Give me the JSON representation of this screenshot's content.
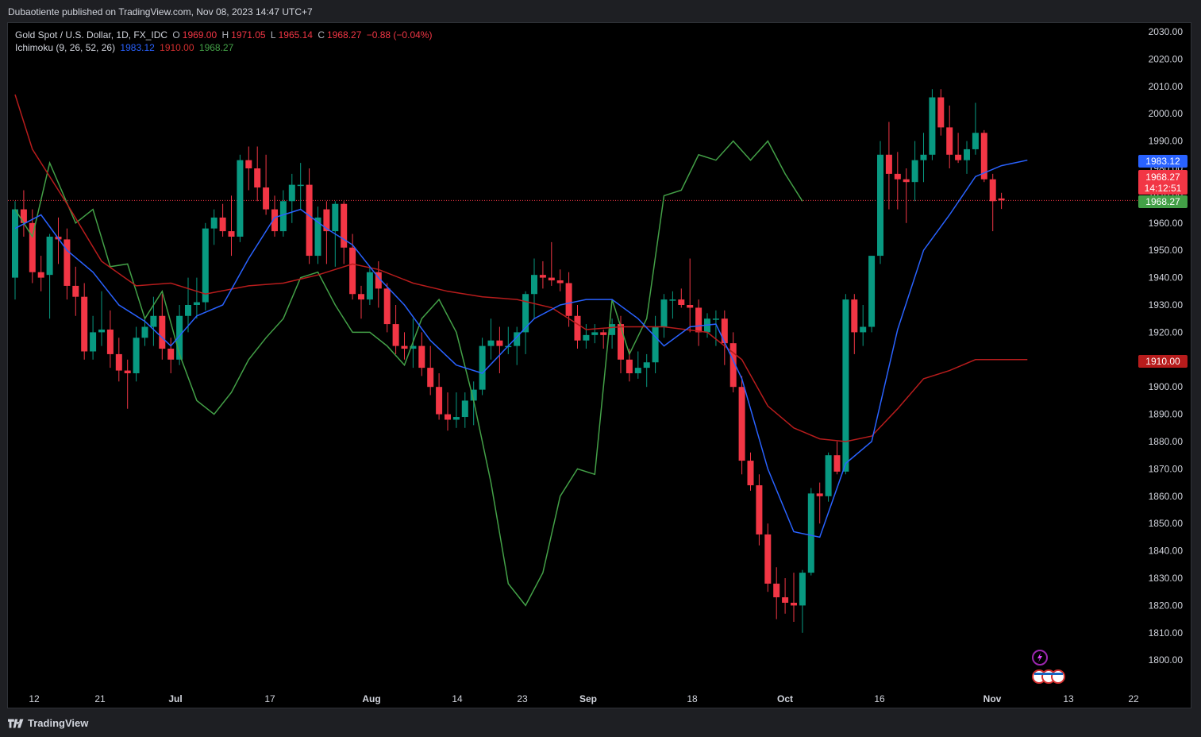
{
  "header": {
    "publisher_line": "Dubaotiente published on TradingView.com, Nov 08, 2023 14:47 UTC+7"
  },
  "legend": {
    "symbol": "Gold Spot / U.S. Dollar, 1D, FX_IDC",
    "o_label": "O",
    "o_value": "1969.00",
    "h_label": "H",
    "h_value": "1971.05",
    "l_label": "L",
    "l_value": "1965.14",
    "c_label": "C",
    "c_value": "1968.27",
    "change": "−0.88 (−0.04%)",
    "indicator": "Ichimoku (9, 26, 52, 26)",
    "tenkan_value": "1983.12",
    "kijun_value": "1910.00",
    "chikou_value": "1968.27"
  },
  "price_axis": {
    "ticks": [
      "2030.00",
      "2020.00",
      "2010.00",
      "2000.00",
      "1990.00",
      "1980.00",
      "1970.00",
      "1960.00",
      "1950.00",
      "1940.00",
      "1930.00",
      "1920.00",
      "1910.00",
      "1900.00",
      "1890.00",
      "1880.00",
      "1870.00",
      "1860.00",
      "1850.00",
      "1840.00",
      "1830.00",
      "1820.00",
      "1810.00",
      "1800.00"
    ],
    "badge_tenkan": "1983.12",
    "badge_last": "1968.27",
    "badge_countdown": "14:12:51",
    "badge_chikou": "1968.27",
    "badge_kijun": "1910.00"
  },
  "time_axis": {
    "labels": [
      "12",
      "21",
      "Jul",
      "17",
      "Aug",
      "14",
      "23",
      "Sep",
      "18",
      "Oct",
      "16",
      "Nov",
      "13",
      "22"
    ]
  },
  "colors": {
    "up": "#089981",
    "down": "#f23645",
    "tenkan": "#2962ff",
    "kijun": "#b71c1c",
    "chikou": "#43a047",
    "background": "#000000"
  },
  "footer": {
    "brand": "TradingView"
  },
  "chart_data": {
    "type": "candlestick",
    "title": "Gold Spot / U.S. Dollar, 1D, FX_IDC",
    "ylim": [
      1795,
      2036
    ],
    "candles": [
      {
        "o": 1940,
        "h": 1968,
        "l": 1932,
        "c": 1965
      },
      {
        "o": 1965,
        "h": 1972,
        "l": 1955,
        "c": 1960
      },
      {
        "o": 1960,
        "h": 1965,
        "l": 1938,
        "c": 1942
      },
      {
        "o": 1942,
        "h": 1948,
        "l": 1935,
        "c": 1940
      },
      {
        "o": 1941,
        "h": 1956,
        "l": 1925,
        "c": 1955
      },
      {
        "o": 1955,
        "h": 1962,
        "l": 1945,
        "c": 1954
      },
      {
        "o": 1954,
        "h": 1958,
        "l": 1932,
        "c": 1937
      },
      {
        "o": 1937,
        "h": 1944,
        "l": 1926,
        "c": 1933
      },
      {
        "o": 1933,
        "h": 1938,
        "l": 1910,
        "c": 1913
      },
      {
        "o": 1913,
        "h": 1926,
        "l": 1910,
        "c": 1920
      },
      {
        "o": 1920,
        "h": 1935,
        "l": 1915,
        "c": 1921
      },
      {
        "o": 1921,
        "h": 1928,
        "l": 1907,
        "c": 1912
      },
      {
        "o": 1912,
        "h": 1918,
        "l": 1902,
        "c": 1906
      },
      {
        "o": 1906,
        "h": 1910,
        "l": 1892,
        "c": 1905
      },
      {
        "o": 1905,
        "h": 1922,
        "l": 1902,
        "c": 1918
      },
      {
        "o": 1918,
        "h": 1925,
        "l": 1915,
        "c": 1922
      },
      {
        "o": 1922,
        "h": 1933,
        "l": 1915,
        "c": 1926
      },
      {
        "o": 1926,
        "h": 1934,
        "l": 1910,
        "c": 1914
      },
      {
        "o": 1914,
        "h": 1918,
        "l": 1905,
        "c": 1910
      },
      {
        "o": 1910,
        "h": 1930,
        "l": 1908,
        "c": 1926
      },
      {
        "o": 1926,
        "h": 1940,
        "l": 1920,
        "c": 1930
      },
      {
        "o": 1930,
        "h": 1940,
        "l": 1925,
        "c": 1931
      },
      {
        "o": 1931,
        "h": 1960,
        "l": 1928,
        "c": 1958
      },
      {
        "o": 1958,
        "h": 1965,
        "l": 1952,
        "c": 1962
      },
      {
        "o": 1962,
        "h": 1967,
        "l": 1955,
        "c": 1957
      },
      {
        "o": 1957,
        "h": 1970,
        "l": 1948,
        "c": 1955
      },
      {
        "o": 1955,
        "h": 1985,
        "l": 1953,
        "c": 1983
      },
      {
        "o": 1983,
        "h": 1988,
        "l": 1972,
        "c": 1980
      },
      {
        "o": 1980,
        "h": 1988,
        "l": 1968,
        "c": 1973
      },
      {
        "o": 1973,
        "h": 1985,
        "l": 1963,
        "c": 1965
      },
      {
        "o": 1965,
        "h": 1970,
        "l": 1955,
        "c": 1957
      },
      {
        "o": 1957,
        "h": 1972,
        "l": 1955,
        "c": 1968
      },
      {
        "o": 1968,
        "h": 1978,
        "l": 1960,
        "c": 1974
      },
      {
        "o": 1974,
        "h": 1982,
        "l": 1965,
        "c": 1974
      },
      {
        "o": 1974,
        "h": 1980,
        "l": 1945,
        "c": 1948
      },
      {
        "o": 1948,
        "h": 1966,
        "l": 1945,
        "c": 1962
      },
      {
        "o": 1965,
        "h": 1968,
        "l": 1945,
        "c": 1957
      },
      {
        "o": 1957,
        "h": 1968,
        "l": 1944,
        "c": 1967
      },
      {
        "o": 1967,
        "h": 1968,
        "l": 1945,
        "c": 1951
      },
      {
        "o": 1951,
        "h": 1956,
        "l": 1932,
        "c": 1934
      },
      {
        "o": 1934,
        "h": 1937,
        "l": 1925,
        "c": 1932
      },
      {
        "o": 1932,
        "h": 1944,
        "l": 1930,
        "c": 1942
      },
      {
        "o": 1942,
        "h": 1946,
        "l": 1929,
        "c": 1936
      },
      {
        "o": 1936,
        "h": 1938,
        "l": 1920,
        "c": 1923
      },
      {
        "o": 1923,
        "h": 1930,
        "l": 1912,
        "c": 1915
      },
      {
        "o": 1915,
        "h": 1920,
        "l": 1910,
        "c": 1914
      },
      {
        "o": 1914,
        "h": 1925,
        "l": 1907,
        "c": 1915
      },
      {
        "o": 1915,
        "h": 1920,
        "l": 1904,
        "c": 1907
      },
      {
        "o": 1907,
        "h": 1915,
        "l": 1897,
        "c": 1900
      },
      {
        "o": 1900,
        "h": 1905,
        "l": 1888,
        "c": 1890
      },
      {
        "o": 1890,
        "h": 1898,
        "l": 1884,
        "c": 1888
      },
      {
        "o": 1888,
        "h": 1898,
        "l": 1885,
        "c": 1889
      },
      {
        "o": 1889,
        "h": 1898,
        "l": 1885,
        "c": 1895
      },
      {
        "o": 1895,
        "h": 1902,
        "l": 1886,
        "c": 1899
      },
      {
        "o": 1899,
        "h": 1918,
        "l": 1897,
        "c": 1915
      },
      {
        "o": 1915,
        "h": 1925,
        "l": 1910,
        "c": 1917
      },
      {
        "o": 1917,
        "h": 1922,
        "l": 1905,
        "c": 1915
      },
      {
        "o": 1915,
        "h": 1922,
        "l": 1912,
        "c": 1915
      },
      {
        "o": 1915,
        "h": 1922,
        "l": 1908,
        "c": 1920
      },
      {
        "o": 1920,
        "h": 1935,
        "l": 1912,
        "c": 1934
      },
      {
        "o": 1934,
        "h": 1947,
        "l": 1925,
        "c": 1941
      },
      {
        "o": 1941,
        "h": 1946,
        "l": 1936,
        "c": 1940
      },
      {
        "o": 1940,
        "h": 1953,
        "l": 1937,
        "c": 1939
      },
      {
        "o": 1939,
        "h": 1943,
        "l": 1935,
        "c": 1938
      },
      {
        "o": 1938,
        "h": 1942,
        "l": 1922,
        "c": 1926
      },
      {
        "o": 1926,
        "h": 1930,
        "l": 1914,
        "c": 1917
      },
      {
        "o": 1917,
        "h": 1923,
        "l": 1914,
        "c": 1919
      },
      {
        "o": 1919,
        "h": 1923,
        "l": 1916,
        "c": 1920
      },
      {
        "o": 1920,
        "h": 1921,
        "l": 1914,
        "c": 1919
      },
      {
        "o": 1919,
        "h": 1925,
        "l": 1914,
        "c": 1923
      },
      {
        "o": 1923,
        "h": 1926,
        "l": 1905,
        "c": 1910
      },
      {
        "o": 1910,
        "h": 1914,
        "l": 1902,
        "c": 1905
      },
      {
        "o": 1905,
        "h": 1913,
        "l": 1903,
        "c": 1907
      },
      {
        "o": 1907,
        "h": 1912,
        "l": 1900,
        "c": 1909
      },
      {
        "o": 1909,
        "h": 1926,
        "l": 1905,
        "c": 1922
      },
      {
        "o": 1922,
        "h": 1934,
        "l": 1918,
        "c": 1932
      },
      {
        "o": 1932,
        "h": 1935,
        "l": 1925,
        "c": 1932
      },
      {
        "o": 1932,
        "h": 1936,
        "l": 1929,
        "c": 1930
      },
      {
        "o": 1930,
        "h": 1947,
        "l": 1920,
        "c": 1929
      },
      {
        "o": 1929,
        "h": 1932,
        "l": 1915,
        "c": 1920
      },
      {
        "o": 1920,
        "h": 1927,
        "l": 1918,
        "c": 1925
      },
      {
        "o": 1925,
        "h": 1928,
        "l": 1915,
        "c": 1925
      },
      {
        "o": 1925,
        "h": 1928,
        "l": 1908,
        "c": 1916
      },
      {
        "o": 1916,
        "h": 1920,
        "l": 1898,
        "c": 1900
      },
      {
        "o": 1900,
        "h": 1904,
        "l": 1868,
        "c": 1873
      },
      {
        "o": 1873,
        "h": 1876,
        "l": 1862,
        "c": 1864
      },
      {
        "o": 1864,
        "h": 1868,
        "l": 1842,
        "c": 1846
      },
      {
        "o": 1846,
        "h": 1850,
        "l": 1825,
        "c": 1828
      },
      {
        "o": 1828,
        "h": 1834,
        "l": 1815,
        "c": 1823
      },
      {
        "o": 1823,
        "h": 1830,
        "l": 1817,
        "c": 1821
      },
      {
        "o": 1821,
        "h": 1832,
        "l": 1814,
        "c": 1820
      },
      {
        "o": 1820,
        "h": 1833,
        "l": 1810,
        "c": 1832
      },
      {
        "o": 1832,
        "h": 1863,
        "l": 1831,
        "c": 1861
      },
      {
        "o": 1861,
        "h": 1865,
        "l": 1850,
        "c": 1860
      },
      {
        "o": 1860,
        "h": 1876,
        "l": 1858,
        "c": 1875
      },
      {
        "o": 1875,
        "h": 1880,
        "l": 1868,
        "c": 1869
      },
      {
        "o": 1869,
        "h": 1934,
        "l": 1868,
        "c": 1932
      },
      {
        "o": 1932,
        "h": 1934,
        "l": 1912,
        "c": 1920
      },
      {
        "o": 1920,
        "h": 1930,
        "l": 1915,
        "c": 1922
      },
      {
        "o": 1922,
        "h": 1948,
        "l": 1920,
        "c": 1948
      },
      {
        "o": 1948,
        "h": 1990,
        "l": 1945,
        "c": 1985
      },
      {
        "o": 1985,
        "h": 1997,
        "l": 1965,
        "c": 1978
      },
      {
        "o": 1978,
        "h": 1986,
        "l": 1965,
        "c": 1976
      },
      {
        "o": 1976,
        "h": 1980,
        "l": 1960,
        "c": 1975
      },
      {
        "o": 1975,
        "h": 1990,
        "l": 1968,
        "c": 1983
      },
      {
        "o": 1983,
        "h": 1993,
        "l": 1975,
        "c": 1985
      },
      {
        "o": 1985,
        "h": 2009,
        "l": 1983,
        "c": 2006
      },
      {
        "o": 2006,
        "h": 2009,
        "l": 1992,
        "c": 1995
      },
      {
        "o": 1995,
        "h": 2003,
        "l": 1980,
        "c": 1985
      },
      {
        "o": 1985,
        "h": 1993,
        "l": 1982,
        "c": 1983
      },
      {
        "o": 1983,
        "h": 1990,
        "l": 1978,
        "c": 1987
      },
      {
        "o": 1987,
        "h": 2004,
        "l": 1985,
        "c": 1993
      },
      {
        "o": 1993,
        "h": 1994,
        "l": 1975,
        "c": 1976
      },
      {
        "o": 1976,
        "h": 1978,
        "l": 1957,
        "c": 1968
      },
      {
        "o": 1969,
        "h": 1971.05,
        "l": 1965.14,
        "c": 1968.27
      }
    ],
    "ichimoku": {
      "tenkan": [
        [
          0,
          1958
        ],
        [
          3,
          1963
        ],
        [
          6,
          1950
        ],
        [
          9,
          1942
        ],
        [
          12,
          1930
        ],
        [
          15,
          1924
        ],
        [
          18,
          1915
        ],
        [
          21,
          1926
        ],
        [
          24,
          1930
        ],
        [
          27,
          1947
        ],
        [
          30,
          1962
        ],
        [
          33,
          1965
        ],
        [
          36,
          1958
        ],
        [
          39,
          1952
        ],
        [
          42,
          1940
        ],
        [
          45,
          1930
        ],
        [
          48,
          1917
        ],
        [
          51,
          1908
        ],
        [
          54,
          1905
        ],
        [
          57,
          1915
        ],
        [
          60,
          1925
        ],
        [
          63,
          1930
        ],
        [
          66,
          1932
        ],
        [
          69,
          1932
        ],
        [
          72,
          1925
        ],
        [
          75,
          1915
        ],
        [
          78,
          1922
        ],
        [
          81,
          1923
        ],
        [
          84,
          1903
        ],
        [
          87,
          1870
        ],
        [
          90,
          1847
        ],
        [
          93,
          1845
        ],
        [
          96,
          1872
        ],
        [
          99,
          1880
        ],
        [
          102,
          1921
        ],
        [
          105,
          1950
        ],
        [
          108,
          1963
        ],
        [
          111,
          1977
        ],
        [
          114,
          1981
        ],
        [
          117,
          1983
        ]
      ],
      "kijun": [
        [
          0,
          2007
        ],
        [
          2,
          1987
        ],
        [
          6,
          1967
        ],
        [
          10,
          1946
        ],
        [
          14,
          1937
        ],
        [
          18,
          1938
        ],
        [
          22,
          1934
        ],
        [
          27,
          1937
        ],
        [
          31,
          1938
        ],
        [
          35,
          1941
        ],
        [
          39,
          1945
        ],
        [
          42,
          1943
        ],
        [
          46,
          1938
        ],
        [
          50,
          1935
        ],
        [
          54,
          1933
        ],
        [
          58,
          1932
        ],
        [
          62,
          1929
        ],
        [
          66,
          1921
        ],
        [
          70,
          1922
        ],
        [
          75,
          1922
        ],
        [
          80,
          1920
        ],
        [
          84,
          1910
        ],
        [
          87,
          1893
        ],
        [
          90,
          1885
        ],
        [
          93,
          1881
        ],
        [
          96,
          1880
        ],
        [
          99,
          1882
        ],
        [
          102,
          1892
        ],
        [
          105,
          1903
        ],
        [
          108,
          1906
        ],
        [
          111,
          1910
        ],
        [
          117,
          1910
        ]
      ],
      "chikou": [
        [
          0,
          1965
        ],
        [
          2,
          1955
        ],
        [
          4,
          1982
        ],
        [
          7,
          1960
        ],
        [
          9,
          1965
        ],
        [
          11,
          1944
        ],
        [
          13,
          1945
        ],
        [
          15,
          1925
        ],
        [
          17,
          1935
        ],
        [
          19,
          1912
        ],
        [
          21,
          1895
        ],
        [
          23,
          1890
        ],
        [
          25,
          1898
        ],
        [
          27,
          1910
        ],
        [
          29,
          1918
        ],
        [
          31,
          1925
        ],
        [
          33,
          1940
        ],
        [
          35,
          1942
        ],
        [
          37,
          1930
        ],
        [
          39,
          1920
        ],
        [
          41,
          1920
        ],
        [
          43,
          1915
        ],
        [
          45,
          1908
        ],
        [
          47,
          1925
        ],
        [
          49,
          1932
        ],
        [
          51,
          1920
        ],
        [
          53,
          1895
        ],
        [
          55,
          1865
        ],
        [
          57,
          1828
        ],
        [
          59,
          1820
        ],
        [
          61,
          1832
        ],
        [
          63,
          1860
        ],
        [
          65,
          1870
        ],
        [
          67,
          1868
        ],
        [
          69,
          1932
        ],
        [
          71,
          1912
        ],
        [
          73,
          1925
        ],
        [
          75,
          1970
        ],
        [
          77,
          1972
        ],
        [
          79,
          1985
        ],
        [
          81,
          1983
        ],
        [
          83,
          1990
        ],
        [
          85,
          1983
        ],
        [
          87,
          1990
        ],
        [
          89,
          1978
        ],
        [
          91,
          1968
        ]
      ]
    }
  }
}
